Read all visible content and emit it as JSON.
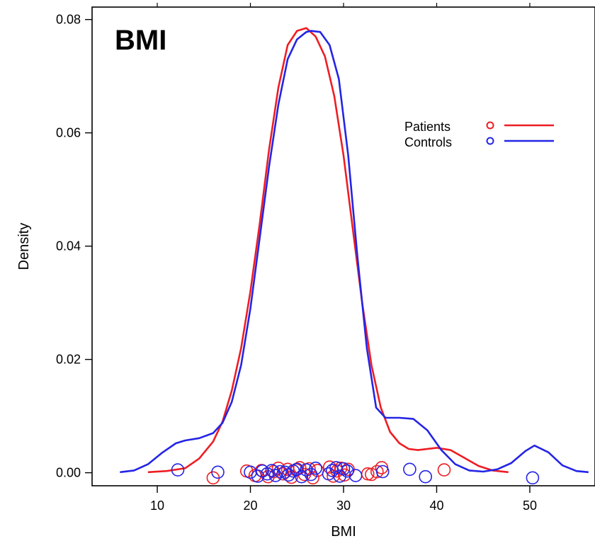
{
  "chart_data": {
    "type": "line",
    "title": "BMI",
    "xlabel": "BMI",
    "ylabel": "Density",
    "xlim": [
      3,
      57
    ],
    "ylim": [
      -0.0023,
      0.0822
    ],
    "x_ticks": [
      10,
      20,
      30,
      40,
      50
    ],
    "x_tick_labels": [
      "10",
      "20",
      "30",
      "40",
      "50"
    ],
    "y_ticks": [
      0,
      0.02,
      0.04,
      0.06,
      0.08
    ],
    "y_tick_labels": [
      "0.00",
      "0.02",
      "0.04",
      "0.06",
      "0.08"
    ],
    "legend": {
      "placement": "top-right",
      "entries": [
        "Patients",
        "Controls"
      ]
    },
    "colors": {
      "Patients": "#ee1d23",
      "Controls": "#2424e6"
    },
    "series": [
      {
        "name": "Patients",
        "color": "#ee1d23",
        "x": [
          9,
          11,
          13,
          14.5,
          16,
          17,
          18,
          19,
          20,
          21,
          22,
          23,
          24,
          25,
          26,
          27,
          28,
          29,
          30,
          31,
          32,
          33,
          34,
          35,
          36,
          37,
          38,
          40,
          41.5,
          43,
          44.5,
          46,
          47.7
        ],
        "y": [
          0.0001,
          0.0003,
          0.0008,
          0.0025,
          0.0055,
          0.009,
          0.0145,
          0.022,
          0.032,
          0.044,
          0.057,
          0.068,
          0.0755,
          0.078,
          0.0785,
          0.077,
          0.0735,
          0.0665,
          0.056,
          0.043,
          0.03,
          0.019,
          0.0115,
          0.0072,
          0.0052,
          0.0042,
          0.004,
          0.0044,
          0.004,
          0.0026,
          0.0012,
          0.0004,
          0.0001
        ]
      },
      {
        "name": "Controls",
        "color": "#2424e6",
        "x": [
          6,
          7.5,
          9,
          10.5,
          12,
          13,
          14.5,
          16,
          17,
          18,
          19,
          20,
          21,
          22,
          23,
          24,
          25,
          26,
          26.5,
          27.5,
          28.5,
          29.5,
          30.5,
          31.5,
          32.5,
          33.5,
          34.5,
          36,
          37.5,
          39,
          40.5,
          42,
          43.5,
          45,
          46.5,
          48,
          49.5,
          50.5,
          52,
          53.5,
          55,
          56.3
        ],
        "y": [
          0.0001,
          0.0004,
          0.0015,
          0.0035,
          0.0052,
          0.0057,
          0.0061,
          0.007,
          0.0088,
          0.0125,
          0.019,
          0.029,
          0.0415,
          0.054,
          0.065,
          0.073,
          0.0765,
          0.0778,
          0.078,
          0.0778,
          0.0755,
          0.0695,
          0.056,
          0.038,
          0.022,
          0.0115,
          0.0097,
          0.0097,
          0.0095,
          0.0075,
          0.004,
          0.0015,
          0.0004,
          0.0002,
          0.0006,
          0.0017,
          0.0038,
          0.0048,
          0.0036,
          0.0013,
          0.0003,
          0.0001
        ]
      }
    ],
    "rug": {
      "Patients": {
        "color": "#ee1d23",
        "x": [
          16.0,
          19.6,
          20.5,
          21.2,
          21.9,
          22.5,
          23.0,
          23.5,
          24.0,
          24.4,
          24.9,
          25.3,
          25.8,
          26.3,
          26.7,
          27.2,
          28.5,
          28.9,
          29.3,
          29.7,
          30.1,
          30.5,
          32.6,
          33.0,
          33.6,
          34.1,
          40.8
        ],
        "y": [
          -0.0009,
          0.0003,
          -0.0005,
          0.0004,
          -0.0007,
          0.0002,
          0.0008,
          -0.0002,
          0.0006,
          -0.0008,
          0.0005,
          0.0009,
          -0.0003,
          0.0007,
          -0.0009,
          0.0004,
          0.001,
          -0.0006,
          0.0003,
          0.0008,
          -0.0004,
          0.0006,
          -0.0002,
          -0.0003,
          0.0002,
          0.0009,
          0.0005
        ]
      },
      "Controls": {
        "color": "#2424e6",
        "x": [
          12.2,
          16.5,
          20.0,
          20.8,
          21.3,
          21.8,
          22.3,
          22.7,
          23.2,
          23.7,
          24.1,
          24.6,
          25.0,
          25.5,
          26.0,
          26.5,
          27.0,
          28.4,
          28.8,
          29.2,
          29.6,
          30.0,
          30.4,
          31.3,
          34.2,
          37.1,
          38.8,
          50.3
        ],
        "y": [
          0.0005,
          0.0001,
          0.0001,
          -0.0006,
          0.0003,
          -0.0002,
          0.0004,
          -0.0005,
          0.0002,
          0.0001,
          -0.0004,
          0.0003,
          0.0006,
          -0.0007,
          0.0005,
          -0.0003,
          0.0008,
          -0.0002,
          0.0004,
          0.0009,
          -0.0006,
          0.0007,
          0.0003,
          -0.0005,
          0.0002,
          0.0006,
          -0.0007,
          -0.0009
        ]
      }
    }
  }
}
